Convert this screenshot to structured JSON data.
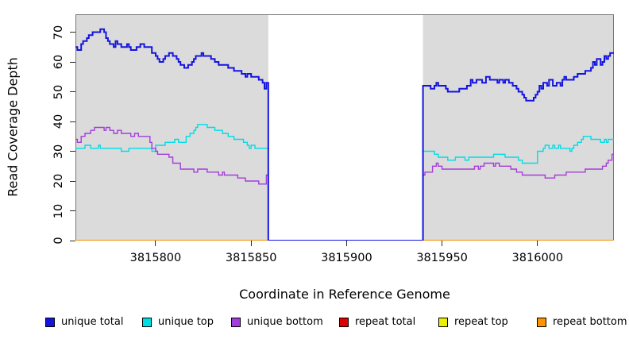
{
  "chart_data": {
    "type": "line",
    "subtype": "step",
    "title": "",
    "xlabel": "Coordinate in Reference Genome",
    "ylabel": "Read Coverage Depth",
    "xlim": [
      3815758,
      3816040
    ],
    "ylim": [
      0,
      76
    ],
    "x_ticks": [
      3815800,
      3815850,
      3815900,
      3815950,
      3816000
    ],
    "y_ticks": [
      0,
      10,
      20,
      30,
      40,
      50,
      60,
      70
    ],
    "grid": false,
    "legend_position": "bottom",
    "plot_background": "#ffffff",
    "box_color": "#777777",
    "tick_color": "#2b2b2b",
    "shaded_regions": [
      {
        "start": 3815758,
        "end": 3815859,
        "color": "#DBDBDB"
      },
      {
        "start": 3815940,
        "end": 3816040,
        "color": "#DBDBDB"
      }
    ],
    "uncovered_region": {
      "start": 3815859,
      "end": 3815940
    },
    "series": [
      {
        "name": "unique total",
        "color": "#1414E0",
        "lwd": 2,
        "points": [
          [
            3815758,
            65
          ],
          [
            3815759,
            64
          ],
          [
            3815761,
            66
          ],
          [
            3815762,
            67
          ],
          [
            3815764,
            68
          ],
          [
            3815765,
            69
          ],
          [
            3815767,
            70
          ],
          [
            3815770,
            70
          ],
          [
            3815771,
            71
          ],
          [
            3815773,
            70
          ],
          [
            3815774,
            68
          ],
          [
            3815775,
            67
          ],
          [
            3815776,
            66
          ],
          [
            3815778,
            65
          ],
          [
            3815779,
            67
          ],
          [
            3815780,
            66
          ],
          [
            3815782,
            65
          ],
          [
            3815785,
            66
          ],
          [
            3815786,
            65
          ],
          [
            3815787,
            64
          ],
          [
            3815790,
            65
          ],
          [
            3815792,
            66
          ],
          [
            3815794,
            65
          ],
          [
            3815797,
            65
          ],
          [
            3815798,
            63
          ],
          [
            3815800,
            62
          ],
          [
            3815801,
            61
          ],
          [
            3815802,
            60
          ],
          [
            3815804,
            61
          ],
          [
            3815805,
            62
          ],
          [
            3815807,
            63
          ],
          [
            3815809,
            62
          ],
          [
            3815811,
            61
          ],
          [
            3815812,
            60
          ],
          [
            3815813,
            59
          ],
          [
            3815815,
            58
          ],
          [
            3815817,
            59
          ],
          [
            3815819,
            60
          ],
          [
            3815820,
            61
          ],
          [
            3815821,
            62
          ],
          [
            3815824,
            63
          ],
          [
            3815825,
            62
          ],
          [
            3815828,
            62
          ],
          [
            3815829,
            61
          ],
          [
            3815831,
            60
          ],
          [
            3815833,
            59
          ],
          [
            3815836,
            59
          ],
          [
            3815838,
            58
          ],
          [
            3815841,
            57
          ],
          [
            3815844,
            57
          ],
          [
            3815845,
            56
          ],
          [
            3815847,
            55
          ],
          [
            3815848,
            56
          ],
          [
            3815850,
            55
          ],
          [
            3815852,
            55
          ],
          [
            3815854,
            54
          ],
          [
            3815856,
            53
          ],
          [
            3815857,
            51
          ],
          [
            3815858,
            53
          ],
          [
            3815859,
            0
          ],
          [
            3815940,
            52
          ],
          [
            3815944,
            51
          ],
          [
            3815946,
            52
          ],
          [
            3815947,
            53
          ],
          [
            3815948,
            52
          ],
          [
            3815952,
            51
          ],
          [
            3815953,
            50
          ],
          [
            3815958,
            50
          ],
          [
            3815959,
            51
          ],
          [
            3815963,
            52
          ],
          [
            3815965,
            54
          ],
          [
            3815966,
            53
          ],
          [
            3815968,
            54
          ],
          [
            3815971,
            53
          ],
          [
            3815973,
            55
          ],
          [
            3815975,
            54
          ],
          [
            3815978,
            54
          ],
          [
            3815979,
            53
          ],
          [
            3815980,
            54
          ],
          [
            3815982,
            53
          ],
          [
            3815983,
            54
          ],
          [
            3815985,
            53
          ],
          [
            3815987,
            52
          ],
          [
            3815989,
            51
          ],
          [
            3815990,
            50
          ],
          [
            3815992,
            49
          ],
          [
            3815993,
            48
          ],
          [
            3815994,
            47
          ],
          [
            3815997,
            47
          ],
          [
            3815998,
            48
          ],
          [
            3815999,
            49
          ],
          [
            3816000,
            50
          ],
          [
            3816001,
            52
          ],
          [
            3816002,
            51
          ],
          [
            3816003,
            53
          ],
          [
            3816005,
            52
          ],
          [
            3816006,
            54
          ],
          [
            3816008,
            52
          ],
          [
            3816010,
            53
          ],
          [
            3816012,
            52
          ],
          [
            3816013,
            54
          ],
          [
            3816014,
            55
          ],
          [
            3816015,
            54
          ],
          [
            3816017,
            54
          ],
          [
            3816019,
            55
          ],
          [
            3816021,
            56
          ],
          [
            3816024,
            56
          ],
          [
            3816025,
            57
          ],
          [
            3816028,
            58
          ],
          [
            3816029,
            60
          ],
          [
            3816030,
            59
          ],
          [
            3816031,
            61
          ],
          [
            3816033,
            59
          ],
          [
            3816034,
            60
          ],
          [
            3816035,
            62
          ],
          [
            3816036,
            61
          ],
          [
            3816037,
            62
          ],
          [
            3816038,
            63
          ],
          [
            3816040,
            63
          ]
        ]
      },
      {
        "name": "unique top",
        "color": "#00DCE6",
        "lwd": 1.4,
        "points": [
          [
            3815758,
            31
          ],
          [
            3815763,
            32
          ],
          [
            3815766,
            31
          ],
          [
            3815770,
            32
          ],
          [
            3815771,
            31
          ],
          [
            3815782,
            30
          ],
          [
            3815786,
            31
          ],
          [
            3815797,
            31
          ],
          [
            3815798,
            30
          ],
          [
            3815800,
            32
          ],
          [
            3815805,
            33
          ],
          [
            3815810,
            34
          ],
          [
            3815812,
            33
          ],
          [
            3815816,
            35
          ],
          [
            3815818,
            36
          ],
          [
            3815820,
            37
          ],
          [
            3815821,
            38
          ],
          [
            3815822,
            39
          ],
          [
            3815826,
            39
          ],
          [
            3815827,
            38
          ],
          [
            3815831,
            37
          ],
          [
            3815835,
            36
          ],
          [
            3815838,
            35
          ],
          [
            3815841,
            34
          ],
          [
            3815846,
            33
          ],
          [
            3815848,
            32
          ],
          [
            3815849,
            31
          ],
          [
            3815850,
            32
          ],
          [
            3815852,
            31
          ],
          [
            3815859,
            0
          ],
          [
            3815940,
            30
          ],
          [
            3815946,
            29
          ],
          [
            3815948,
            28
          ],
          [
            3815951,
            28
          ],
          [
            3815953,
            27
          ],
          [
            3815957,
            28
          ],
          [
            3815962,
            27
          ],
          [
            3815964,
            28
          ],
          [
            3815974,
            28
          ],
          [
            3815977,
            29
          ],
          [
            3815982,
            29
          ],
          [
            3815983,
            28
          ],
          [
            3815989,
            28
          ],
          [
            3815990,
            27
          ],
          [
            3815992,
            26
          ],
          [
            3815998,
            26
          ],
          [
            3816000,
            30
          ],
          [
            3816003,
            31
          ],
          [
            3816004,
            32
          ],
          [
            3816006,
            31
          ],
          [
            3816008,
            32
          ],
          [
            3816009,
            31
          ],
          [
            3816011,
            32
          ],
          [
            3816012,
            31
          ],
          [
            3816015,
            31
          ],
          [
            3816017,
            30
          ],
          [
            3816018,
            31
          ],
          [
            3816019,
            32
          ],
          [
            3816021,
            33
          ],
          [
            3816023,
            34
          ],
          [
            3816024,
            35
          ],
          [
            3816027,
            35
          ],
          [
            3816028,
            34
          ],
          [
            3816031,
            34
          ],
          [
            3816033,
            33
          ],
          [
            3816035,
            34
          ],
          [
            3816036,
            33
          ],
          [
            3816037,
            34
          ],
          [
            3816040,
            34
          ]
        ]
      },
      {
        "name": "unique bottom",
        "color": "#A43DDB",
        "lwd": 1.4,
        "points": [
          [
            3815758,
            34
          ],
          [
            3815759,
            33
          ],
          [
            3815761,
            35
          ],
          [
            3815763,
            36
          ],
          [
            3815766,
            37
          ],
          [
            3815768,
            38
          ],
          [
            3815773,
            37
          ],
          [
            3815774,
            38
          ],
          [
            3815776,
            37
          ],
          [
            3815778,
            36
          ],
          [
            3815780,
            37
          ],
          [
            3815782,
            36
          ],
          [
            3815786,
            36
          ],
          [
            3815787,
            35
          ],
          [
            3815789,
            36
          ],
          [
            3815791,
            35
          ],
          [
            3815797,
            33
          ],
          [
            3815798,
            31
          ],
          [
            3815800,
            30
          ],
          [
            3815801,
            29
          ],
          [
            3815805,
            29
          ],
          [
            3815807,
            28
          ],
          [
            3815809,
            26
          ],
          [
            3815813,
            24
          ],
          [
            3815819,
            24
          ],
          [
            3815820,
            23
          ],
          [
            3815822,
            24
          ],
          [
            3815827,
            23
          ],
          [
            3815833,
            22
          ],
          [
            3815835,
            23
          ],
          [
            3815836,
            22
          ],
          [
            3815841,
            22
          ],
          [
            3815843,
            21
          ],
          [
            3815847,
            20
          ],
          [
            3815852,
            20
          ],
          [
            3815854,
            19
          ],
          [
            3815857,
            19
          ],
          [
            3815858,
            22
          ],
          [
            3815859,
            0
          ],
          [
            3815940,
            22
          ],
          [
            3815941,
            23
          ],
          [
            3815945,
            25
          ],
          [
            3815947,
            26
          ],
          [
            3815948,
            25
          ],
          [
            3815950,
            24
          ],
          [
            3815956,
            24
          ],
          [
            3815966,
            24
          ],
          [
            3815967,
            25
          ],
          [
            3815969,
            24
          ],
          [
            3815970,
            25
          ],
          [
            3815972,
            26
          ],
          [
            3815975,
            26
          ],
          [
            3815977,
            25
          ],
          [
            3815978,
            26
          ],
          [
            3815980,
            25
          ],
          [
            3815985,
            25
          ],
          [
            3815986,
            24
          ],
          [
            3815989,
            23
          ],
          [
            3815992,
            22
          ],
          [
            3815994,
            22
          ],
          [
            3816004,
            21
          ],
          [
            3816007,
            21
          ],
          [
            3816009,
            22
          ],
          [
            3816013,
            22
          ],
          [
            3816015,
            23
          ],
          [
            3816024,
            23
          ],
          [
            3816025,
            24
          ],
          [
            3816033,
            24
          ],
          [
            3816034,
            25
          ],
          [
            3816036,
            26
          ],
          [
            3816037,
            27
          ],
          [
            3816039,
            29
          ],
          [
            3816040,
            29
          ]
        ]
      },
      {
        "name": "repeat total",
        "color": "#DD0000",
        "lwd": 1.4,
        "points": [
          [
            3815758,
            0
          ],
          [
            3816040,
            0
          ]
        ]
      },
      {
        "name": "repeat top",
        "color": "#EEEE00",
        "lwd": 1.4,
        "points": [
          [
            3815758,
            0
          ],
          [
            3816040,
            0
          ]
        ]
      },
      {
        "name": "repeat bottom",
        "color": "#FF9400",
        "lwd": 1.6,
        "points": [
          [
            3815758,
            0
          ],
          [
            3816040,
            0
          ]
        ]
      }
    ]
  }
}
